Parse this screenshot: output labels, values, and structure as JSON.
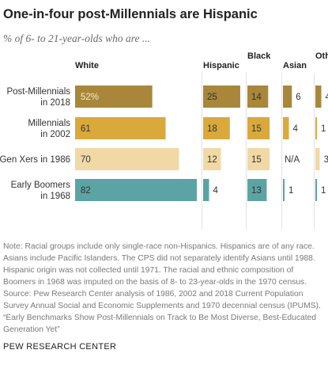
{
  "title": "One-in-four post-Millennials are Hispanic",
  "subtitle": "% of 6- to 21-year-olds who are ...",
  "chart_data": {
    "type": "bar",
    "stacked_panels": true,
    "categories": [
      "Post-Millennials in 2018",
      "Millennials in 2002",
      "Gen Xers in 1986",
      "Early Boomers in 1968"
    ],
    "category_lines": [
      [
        "Post-Millennials",
        "in 2018"
      ],
      [
        "Millennials",
        "in 2002"
      ],
      [
        "Gen Xers in 1986"
      ],
      [
        "Early Boomers",
        "in 1968"
      ]
    ],
    "row_colors": [
      "#a8873a",
      "#d9a93c",
      "#f1d9a5",
      "#5ba4a3"
    ],
    "series": [
      {
        "name": "White",
        "values": [
          52,
          61,
          70,
          82
        ],
        "labels": [
          "52%",
          "61",
          "70",
          "82"
        ],
        "xlim": [
          0,
          100
        ]
      },
      {
        "name": "Hispanic",
        "values": [
          25,
          18,
          12,
          4
        ],
        "labels": [
          "25",
          "18",
          "12",
          "4"
        ],
        "xlim": [
          0,
          100
        ]
      },
      {
        "name": "Black",
        "values": [
          14,
          15,
          15,
          13
        ],
        "labels": [
          "14",
          "15",
          "15",
          "13"
        ],
        "xlim": [
          0,
          100
        ]
      },
      {
        "name": "Asian",
        "values": [
          6,
          4,
          null,
          1
        ],
        "labels": [
          "6",
          "4",
          "N/A",
          "1"
        ],
        "xlim": [
          0,
          100
        ]
      },
      {
        "name": "Other",
        "values": [
          4,
          1,
          3,
          1
        ],
        "labels": [
          "4",
          "1",
          "3",
          "1"
        ],
        "xlim": [
          0,
          100
        ]
      }
    ],
    "grid": false,
    "legend": "column headers"
  },
  "note": {
    "note_text": "Note: Racial groups include only single-race non-Hispanics. Hispanics are of any race. Asians include Pacific Islanders. The CPS did not separately identify Asians until 1988. Hispanic origin was not collected until 1971. The racial and ethnic composition of Boomers in 1968 was imputed on the basis of 8- to 23-year-olds in the 1970 census.",
    "source_text": "Source: Pew Research Center analysis of 1986, 2002 and 2018 Current Population Survey Annual Social and Economic Supplements and 1970 decennial census (IPUMS).",
    "report_text": "“Early Benchmarks Show Post-Millennials on Track to Be Most Diverse, Best-Educated Generation Yet”"
  },
  "footer": "PEW RESEARCH CENTER"
}
